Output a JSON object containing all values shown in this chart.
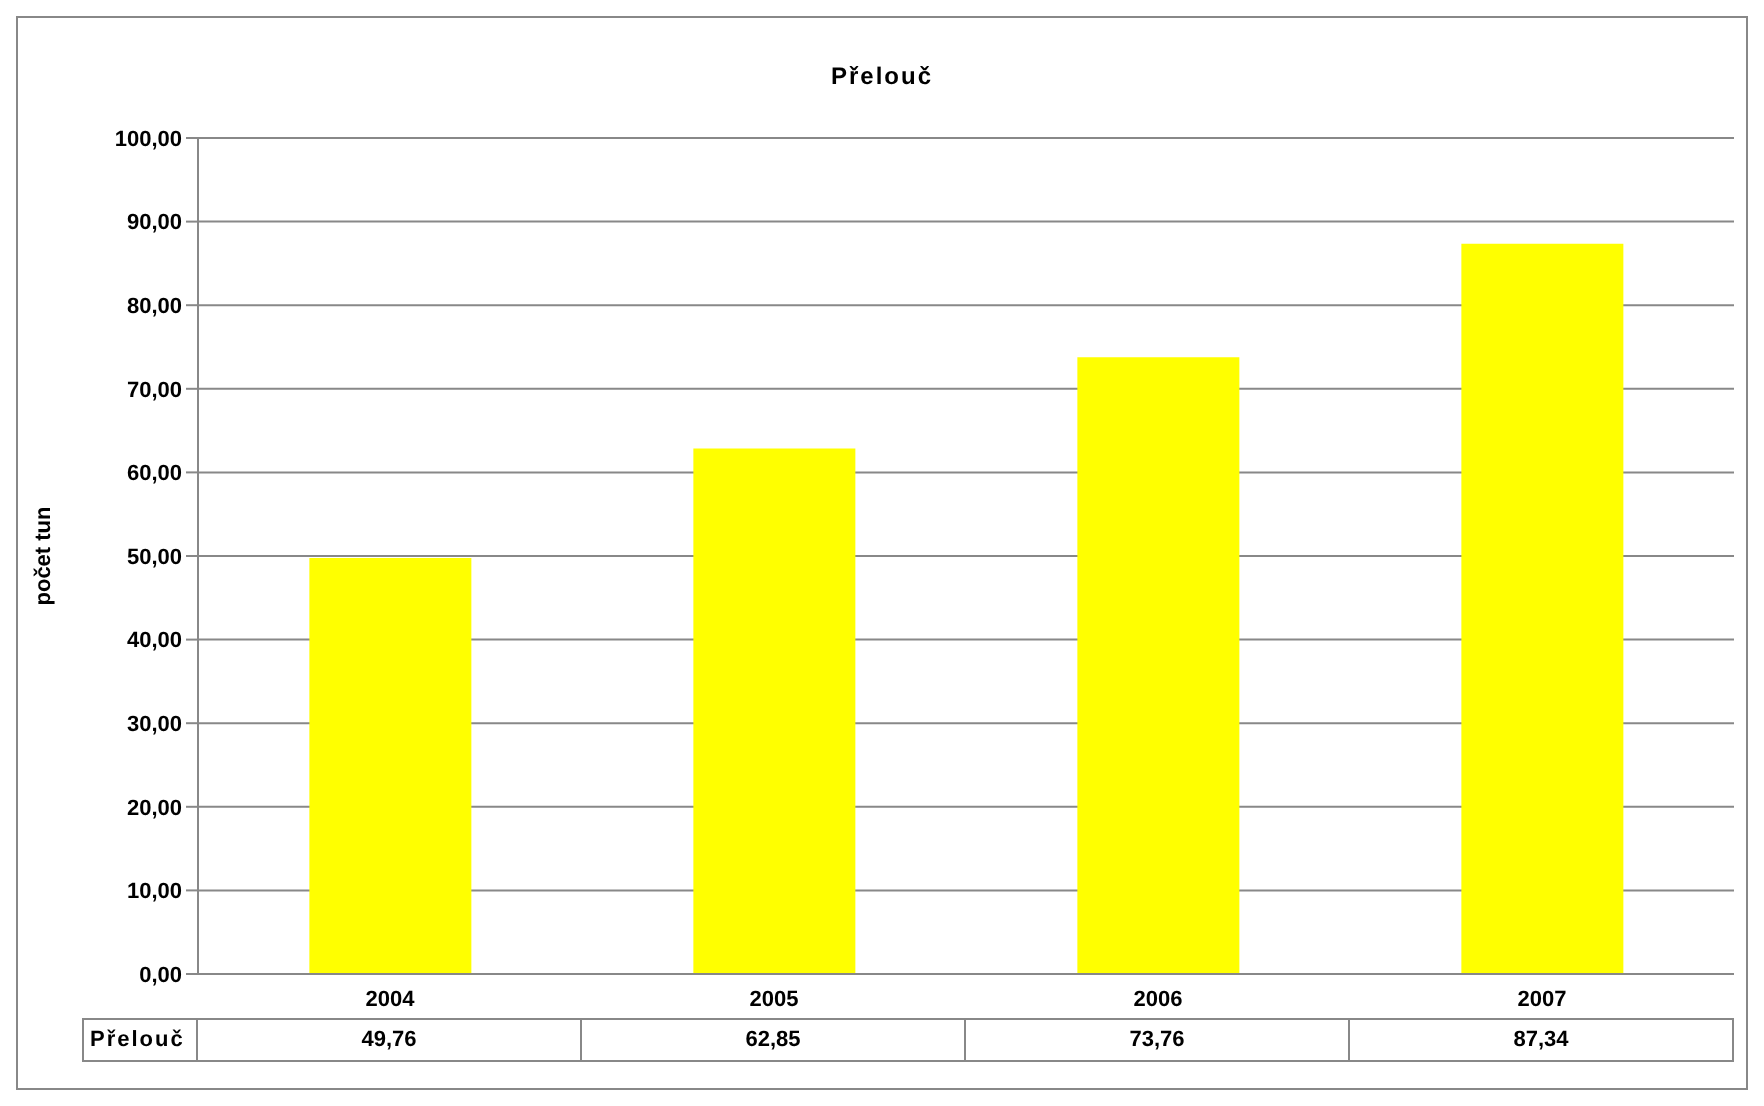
{
  "chart_data": {
    "type": "bar",
    "title": "Přelouč",
    "ylabel": "počet tun",
    "categories": [
      "2004",
      "2005",
      "2006",
      "2007"
    ],
    "series": [
      {
        "name": "Přelouč",
        "color": "#ffff00",
        "values": [
          49.76,
          62.85,
          73.76,
          87.34
        ],
        "value_labels": [
          "49,76",
          "62,85",
          "73,76",
          "87,34"
        ]
      }
    ],
    "ylim": [
      0,
      100
    ],
    "yticks": [
      {
        "value": 0,
        "label": "0,00"
      },
      {
        "value": 10,
        "label": "10,00"
      },
      {
        "value": 20,
        "label": "20,00"
      },
      {
        "value": 30,
        "label": "30,00"
      },
      {
        "value": 40,
        "label": "40,00"
      },
      {
        "value": 50,
        "label": "50,00"
      },
      {
        "value": 60,
        "label": "60,00"
      },
      {
        "value": 70,
        "label": "70,00"
      },
      {
        "value": 80,
        "label": "80,00"
      },
      {
        "value": 90,
        "label": "90,00"
      },
      {
        "value": 100,
        "label": "100,00"
      }
    ],
    "grid": "y"
  }
}
